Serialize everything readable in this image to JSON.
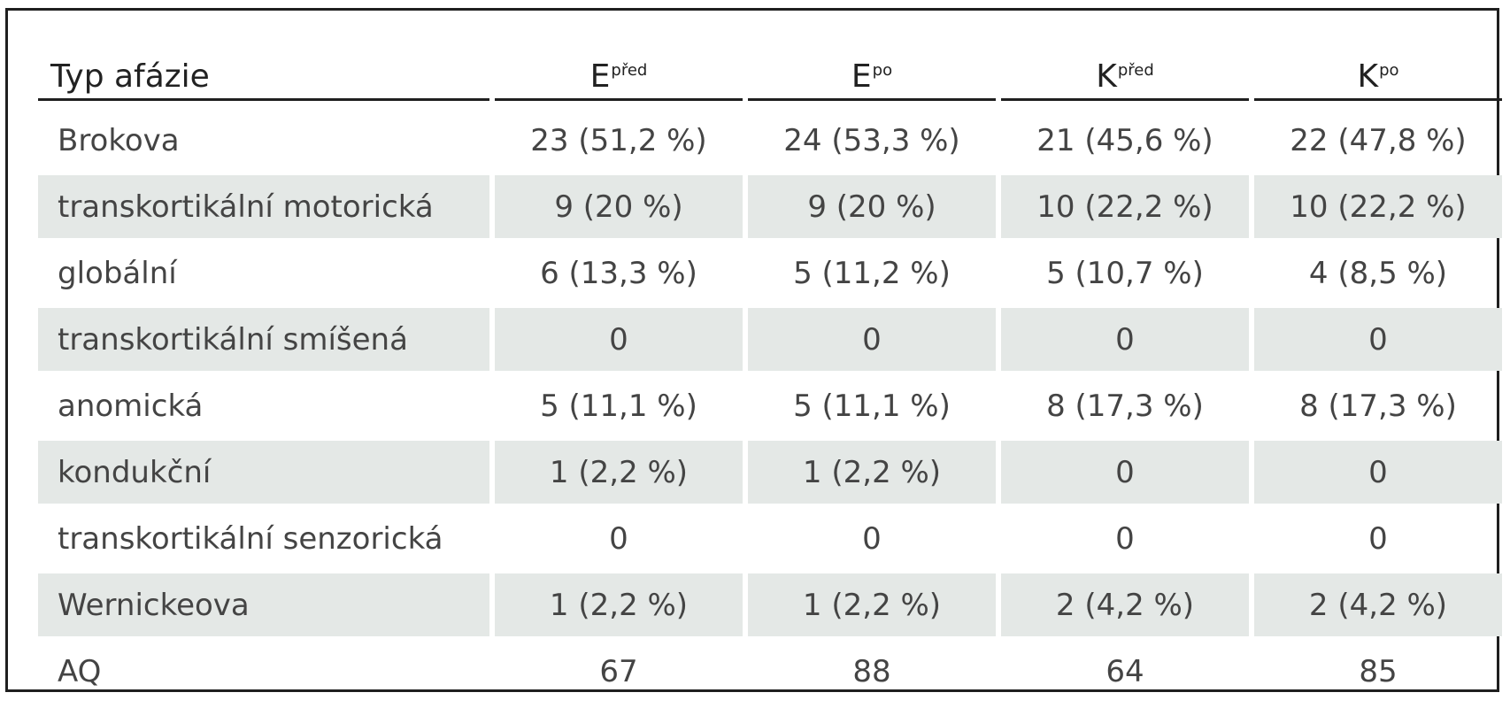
{
  "table": {
    "header": {
      "type_label": "Typ afázie",
      "columns": [
        {
          "base": "E",
          "sup": "před"
        },
        {
          "base": "E",
          "sup": "po"
        },
        {
          "base": "K",
          "sup": "před"
        },
        {
          "base": "K",
          "sup": "po"
        }
      ]
    },
    "rows": [
      {
        "label": "Brokova",
        "values": [
          "23 (51,2 %)",
          "24 (53,3 %)",
          "21 (45,6 %)",
          "22 (47,8 %)"
        ]
      },
      {
        "label": "transkortikální motorická",
        "values": [
          "9 (20 %)",
          "9 (20 %)",
          "10 (22,2 %)",
          "10 (22,2 %)"
        ]
      },
      {
        "label": "globální",
        "values": [
          "6 (13,3 %)",
          "5 (11,2 %)",
          "5 (10,7 %)",
          "4 (8,5 %)"
        ]
      },
      {
        "label": "transkortikální smíšená",
        "values": [
          "0",
          "0",
          "0",
          "0"
        ]
      },
      {
        "label": "anomická",
        "values": [
          "5 (11,1 %)",
          "5 (11,1 %)",
          "8 (17,3 %)",
          "8 (17,3 %)"
        ]
      },
      {
        "label": "kondukční",
        "values": [
          "1 (2,2 %)",
          "1 (2,2 %)",
          "0",
          "0"
        ]
      },
      {
        "label": "transkortikální senzorická",
        "values": [
          "0",
          "0",
          "0",
          "0"
        ]
      },
      {
        "label": "Wernickeova",
        "values": [
          "1 (2,2 %)",
          "1 (2,2 %)",
          "2 (4,2 %)",
          "2 (4,2 %)"
        ]
      },
      {
        "label": "AQ",
        "values": [
          "67",
          "88",
          "64",
          "85"
        ]
      }
    ],
    "colors": {
      "shade": "#e4e8e6",
      "rule": "#1f1f1f",
      "text": "#444444"
    }
  }
}
